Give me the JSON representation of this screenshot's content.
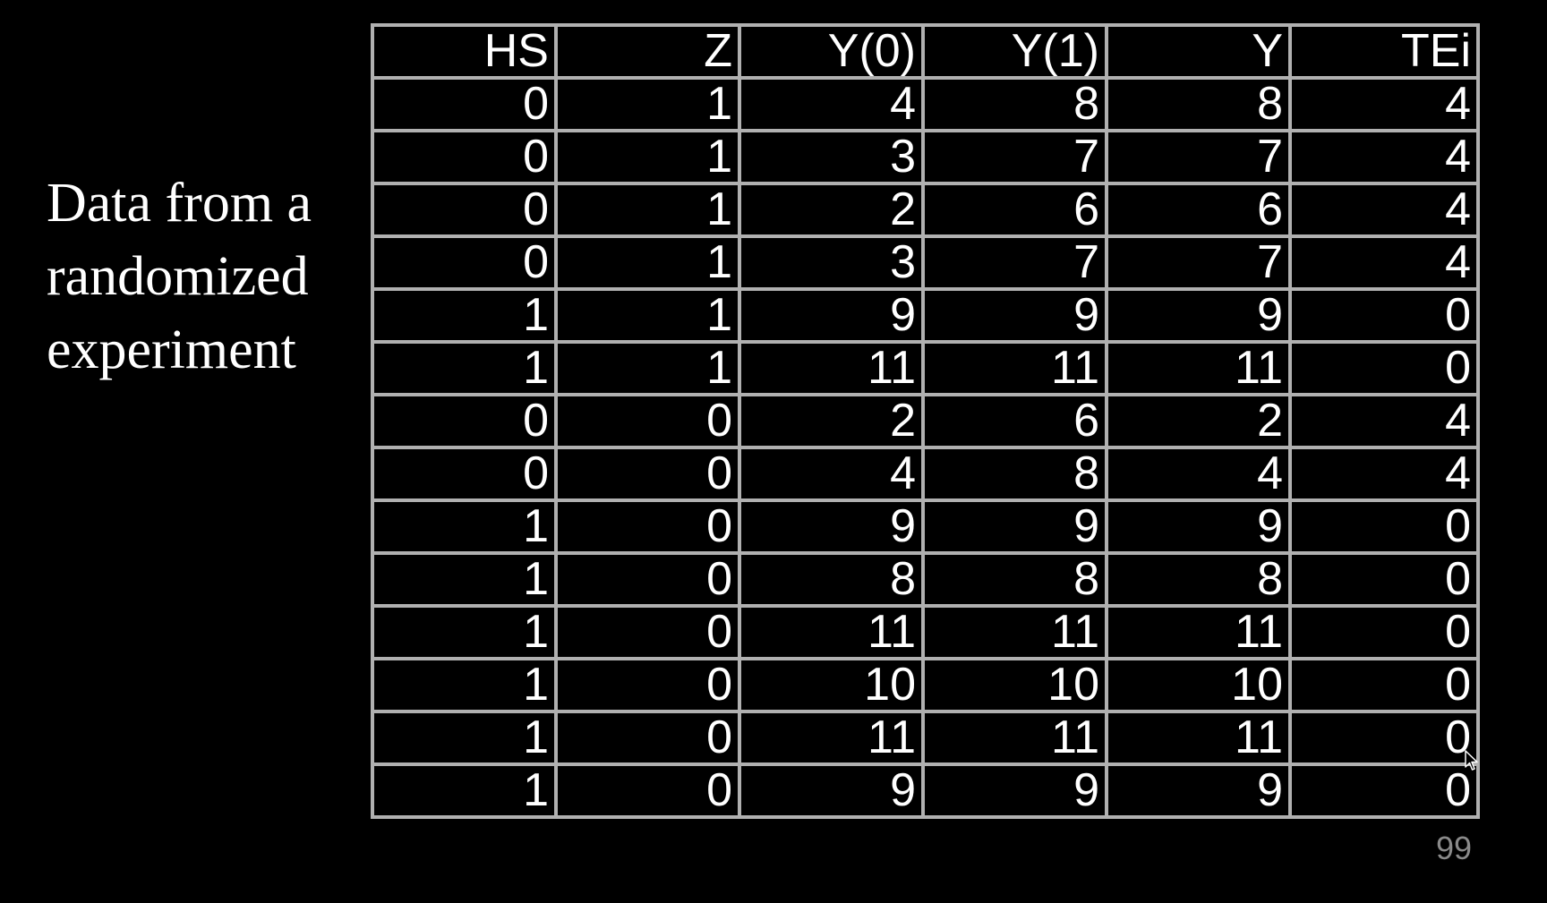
{
  "side_text": {
    "lines": [
      "Data from a",
      "randomized",
      "experiment"
    ]
  },
  "table": {
    "headers": [
      "HS",
      "Z",
      "Y(0)",
      "Y(1)",
      "Y",
      "TEi"
    ],
    "rows": [
      [
        "0",
        "1",
        "4",
        "8",
        "8",
        "4"
      ],
      [
        "0",
        "1",
        "3",
        "7",
        "7",
        "4"
      ],
      [
        "0",
        "1",
        "2",
        "6",
        "6",
        "4"
      ],
      [
        "0",
        "1",
        "3",
        "7",
        "7",
        "4"
      ],
      [
        "1",
        "1",
        "9",
        "9",
        "9",
        "0"
      ],
      [
        "1",
        "1",
        "11",
        "11",
        "11",
        "0"
      ],
      [
        "0",
        "0",
        "2",
        "6",
        "2",
        "4"
      ],
      [
        "0",
        "0",
        "4",
        "8",
        "4",
        "4"
      ],
      [
        "1",
        "0",
        "9",
        "9",
        "9",
        "0"
      ],
      [
        "1",
        "0",
        "8",
        "8",
        "8",
        "0"
      ],
      [
        "1",
        "0",
        "11",
        "11",
        "11",
        "0"
      ],
      [
        "1",
        "0",
        "10",
        "10",
        "10",
        "0"
      ],
      [
        "1",
        "0",
        "11",
        "11",
        "11",
        "0"
      ],
      [
        "1",
        "0",
        "9",
        "9",
        "9",
        "0"
      ]
    ]
  },
  "page_number": "99",
  "icons": {
    "cursor": "mouse-pointer-icon"
  },
  "colors": {
    "background": "#000000",
    "text": "#ffffff",
    "grid": "#b0b0b0",
    "page_number": "#8a8a8a"
  }
}
